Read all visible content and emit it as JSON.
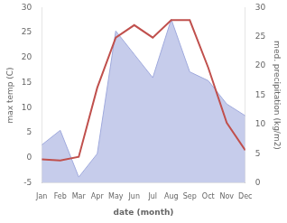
{
  "chart_data": {
    "type": "line",
    "xlabel": "date (month)",
    "ylabel": "max temp (C)",
    "y2label": "med. precipitation (kg/m2)",
    "categories": [
      "Jan",
      "Feb",
      "Mar",
      "Apr",
      "May",
      "Jun",
      "Jul",
      "Aug",
      "Sep",
      "Oct",
      "Nov",
      "Dec"
    ],
    "series": [
      {
        "type": "area",
        "axis": "y2",
        "color": "#a0aadd",
        "values": [
          6.5,
          9.0,
          1.0,
          5.0,
          26.0,
          22.0,
          18.0,
          28.0,
          19.0,
          17.5,
          13.5,
          11.5
        ]
      },
      {
        "type": "line",
        "color": "#c0504d",
        "values": [
          -0.3,
          -0.5,
          0.2,
          14.0,
          24.0,
          26.5,
          24.0,
          27.5,
          27.5,
          18.0,
          7.0,
          1.5
        ]
      }
    ],
    "ylim": [
      -5,
      30
    ],
    "yticks": [
      -5,
      0,
      5,
      10,
      15,
      20,
      25,
      30
    ],
    "y2lim": [
      0,
      30
    ],
    "y2ticks": [
      0,
      5,
      10,
      15,
      20,
      25,
      30
    ],
    "grid": false
  }
}
